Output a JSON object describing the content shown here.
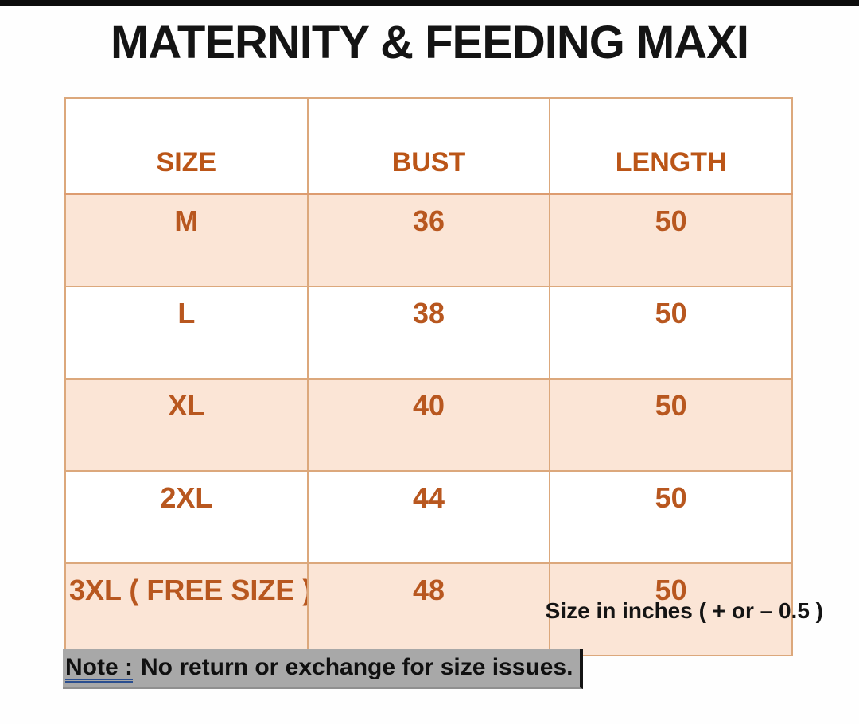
{
  "page": {
    "title": "MATERNITY & FEEDING MAXI"
  },
  "size_chart": {
    "columns": [
      "SIZE",
      "BUST",
      "LENGTH"
    ],
    "rows": [
      {
        "size": "M",
        "bust": "36",
        "length": "50"
      },
      {
        "size": "L",
        "bust": "38",
        "length": "50"
      },
      {
        "size": "XL",
        "bust": "40",
        "length": "50"
      },
      {
        "size": "2XL",
        "bust": "44",
        "length": "50"
      },
      {
        "size": "3XL ( FREE SIZE )",
        "bust": "48",
        "length": "50"
      }
    ],
    "unit_note": "Size in inches ( + or – 0.5 )"
  },
  "note": {
    "label": "Note :",
    "text": "No return or exchange for size issues."
  },
  "chart_data": {
    "type": "table",
    "title": "MATERNITY & FEEDING MAXI",
    "columns": [
      "SIZE",
      "BUST",
      "LENGTH"
    ],
    "rows": [
      [
        "M",
        36,
        50
      ],
      [
        "L",
        38,
        50
      ],
      [
        "XL",
        40,
        50
      ],
      [
        "2XL",
        44,
        50
      ],
      [
        "3XL ( FREE SIZE )",
        48,
        50
      ]
    ],
    "units": "inches",
    "tolerance": "+ or – 0.5"
  },
  "colors": {
    "accent_text": "#bb5517",
    "row_highlight": "#fbe5d6",
    "table_border": "#dca87c",
    "note_highlight": "#a8a8a8",
    "note_underline": "#2a4e8f",
    "top_strip": "#0d0d0d"
  }
}
